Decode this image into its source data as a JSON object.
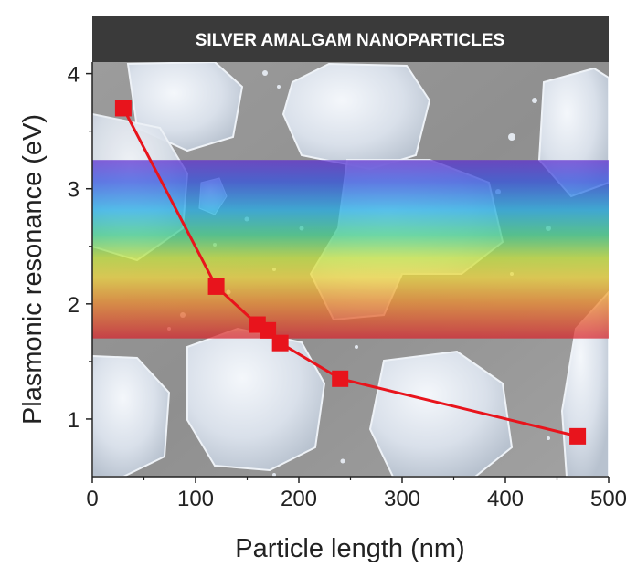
{
  "chart_data": {
    "type": "line",
    "title": "SILVER AMALGAM NANOPARTICLES",
    "xlabel": "Particle length (nm)",
    "ylabel": "Plasmonic resonance (eV)",
    "xlim": [
      0,
      500
    ],
    "ylim": [
      0.5,
      4.1
    ],
    "x_ticks": [
      0,
      100,
      200,
      300,
      400,
      500
    ],
    "y_ticks": [
      1,
      2,
      3,
      4
    ],
    "series": [
      {
        "x": [
          30,
          120,
          160,
          170,
          182,
          240,
          470
        ],
        "y": [
          3.7,
          2.15,
          1.82,
          1.77,
          1.66,
          1.35,
          0.85
        ]
      }
    ],
    "visible_spectrum_band_ev": [
      1.7,
      3.25
    ],
    "line_color": "#e8141c",
    "marker": "square",
    "grid": false,
    "legend": "none"
  }
}
